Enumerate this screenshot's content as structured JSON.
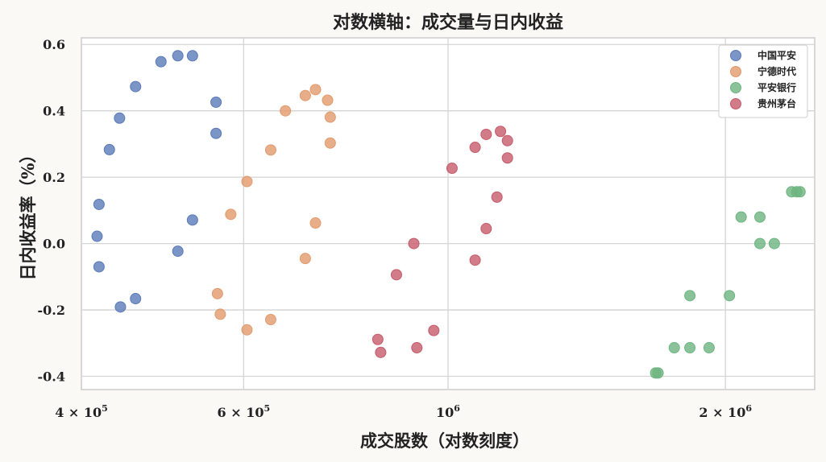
{
  "chart_data": {
    "type": "scatter",
    "title": "对数横轴：成交量与日内收益",
    "xlabel": "成交股数（对数刻度）",
    "ylabel": "日内收益率（%）",
    "xscale": "log",
    "xlim": [
      400000,
      2500000
    ],
    "ylim": [
      -0.44,
      0.62
    ],
    "grid": true,
    "legend_position": "top-right",
    "x_ticks": [
      {
        "value": 400000,
        "mantissa": "4",
        "exponent": "5"
      },
      {
        "value": 600000,
        "mantissa": "6",
        "exponent": "5"
      },
      {
        "value": 1000000,
        "mantissa": "",
        "exponent": "6"
      },
      {
        "value": 2000000,
        "mantissa": "2",
        "exponent": "6"
      }
    ],
    "y_ticks": [
      {
        "value": -0.4,
        "label": "-0.4"
      },
      {
        "value": -0.2,
        "label": "-0.2"
      },
      {
        "value": 0.0,
        "label": "0.0"
      },
      {
        "value": 0.2,
        "label": "0.2"
      },
      {
        "value": 0.4,
        "label": "0.4"
      },
      {
        "value": 0.6,
        "label": "0.6"
      }
    ],
    "series": [
      {
        "name": "中国平安",
        "color": "#5a7ab8",
        "points": [
          [
            429000,
            0.283
          ],
          [
            440000,
            0.378
          ],
          [
            458000,
            0.473
          ],
          [
            488000,
            0.548
          ],
          [
            509000,
            0.566
          ],
          [
            528000,
            0.566
          ],
          [
            560000,
            0.426
          ],
          [
            560000,
            0.332
          ],
          [
            418000,
            0.118
          ],
          [
            416000,
            0.022
          ],
          [
            418000,
            -0.07
          ],
          [
            441000,
            -0.191
          ],
          [
            458000,
            -0.166
          ],
          [
            509000,
            -0.023
          ],
          [
            528000,
            0.071
          ]
        ]
      },
      {
        "name": "宁德时代",
        "color": "#e19a6c",
        "points": [
          [
            666000,
            0.4
          ],
          [
            700000,
            0.446
          ],
          [
            718000,
            0.464
          ],
          [
            740000,
            0.432
          ],
          [
            745000,
            0.381
          ],
          [
            745000,
            0.303
          ],
          [
            642000,
            0.282
          ],
          [
            605000,
            0.187
          ],
          [
            581000,
            0.088
          ],
          [
            718000,
            0.062
          ],
          [
            700000,
            -0.045
          ],
          [
            562000,
            -0.151
          ],
          [
            566000,
            -0.213
          ],
          [
            605000,
            -0.26
          ],
          [
            642000,
            -0.229
          ]
        ]
      },
      {
        "name": "平安银行",
        "color": "#6db47f",
        "points": [
          [
            2360000,
            0.156
          ],
          [
            2390000,
            0.156
          ],
          [
            2410000,
            0.156
          ],
          [
            2080000,
            0.08
          ],
          [
            2180000,
            0.08
          ],
          [
            2180000,
            0.0
          ],
          [
            2260000,
            0.0
          ],
          [
            1830000,
            -0.157
          ],
          [
            2020000,
            -0.157
          ],
          [
            1760000,
            -0.314
          ],
          [
            1830000,
            -0.314
          ],
          [
            1920000,
            -0.314
          ],
          [
            1680000,
            -0.39
          ],
          [
            1690000,
            -0.39
          ]
        ]
      },
      {
        "name": "贵州茅台",
        "color": "#c55b6a",
        "points": [
          [
            1140000,
            0.338
          ],
          [
            1100000,
            0.329
          ],
          [
            1160000,
            0.31
          ],
          [
            1070000,
            0.29
          ],
          [
            1160000,
            0.258
          ],
          [
            1010000,
            0.227
          ],
          [
            1130000,
            0.14
          ],
          [
            1100000,
            0.045
          ],
          [
            918000,
            0.0
          ],
          [
            1070000,
            -0.05
          ],
          [
            879000,
            -0.094
          ],
          [
            839000,
            -0.289
          ],
          [
            845000,
            -0.328
          ],
          [
            925000,
            -0.314
          ],
          [
            965000,
            -0.262
          ]
        ]
      }
    ]
  }
}
